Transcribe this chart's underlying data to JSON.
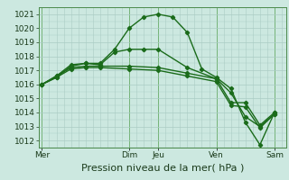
{
  "bg_color": "#cce8e0",
  "line_color": "#1a6b1a",
  "grid_color": "#aaccc4",
  "ylim": [
    1011.5,
    1021.5
  ],
  "yticks": [
    1012,
    1013,
    1014,
    1015,
    1016,
    1017,
    1018,
    1019,
    1020,
    1021
  ],
  "xlabel": "Pression niveau de la mer( hPa )",
  "xlabel_fontsize": 8,
  "tick_fontsize": 6.5,
  "day_labels": [
    "Mer",
    "Dim",
    "Jeu",
    "Ven",
    "Sam"
  ],
  "day_positions": [
    0,
    3,
    4,
    6,
    8
  ],
  "lines": [
    {
      "x": [
        0,
        0.5,
        1,
        1.5,
        2,
        2.5,
        3,
        3.5,
        4,
        4.5,
        5,
        5.5,
        6,
        6.5,
        7,
        7.5,
        8
      ],
      "y": [
        1016.0,
        1016.6,
        1017.4,
        1017.5,
        1017.5,
        1018.5,
        1020.0,
        1020.8,
        1021.0,
        1020.8,
        1019.7,
        1017.1,
        1016.5,
        1015.7,
        1013.3,
        1011.7,
        1014.0
      ],
      "marker": "D",
      "ms": 2.2,
      "lw": 1.0
    },
    {
      "x": [
        0,
        0.5,
        1,
        1.5,
        2,
        2.5,
        3,
        3.5,
        4,
        5,
        6,
        6.5,
        7,
        7.5,
        8
      ],
      "y": [
        1016.0,
        1016.5,
        1017.3,
        1017.5,
        1017.4,
        1018.3,
        1018.5,
        1018.5,
        1018.5,
        1017.2,
        1016.4,
        1015.4,
        1013.7,
        1013.0,
        1013.9
      ],
      "marker": "D",
      "ms": 2.2,
      "lw": 1.0
    },
    {
      "x": [
        0,
        0.5,
        1,
        1.5,
        2,
        3,
        4,
        5,
        6,
        6.5,
        7,
        7.5,
        8
      ],
      "y": [
        1016.0,
        1016.6,
        1017.2,
        1017.3,
        1017.3,
        1017.3,
        1017.2,
        1016.8,
        1016.4,
        1014.7,
        1014.7,
        1013.1,
        1014.0
      ],
      "marker": "D",
      "ms": 2.2,
      "lw": 1.0
    },
    {
      "x": [
        0,
        0.5,
        1,
        1.5,
        2,
        3,
        4,
        5,
        6,
        6.5,
        7,
        7.5,
        8
      ],
      "y": [
        1016.0,
        1016.5,
        1017.1,
        1017.2,
        1017.2,
        1017.1,
        1017.0,
        1016.6,
        1016.2,
        1014.5,
        1014.4,
        1012.9,
        1013.9
      ],
      "marker": "D",
      "ms": 2.2,
      "lw": 1.0
    }
  ],
  "vline_color": "#66aa66",
  "xlim": [
    -0.1,
    8.4
  ]
}
